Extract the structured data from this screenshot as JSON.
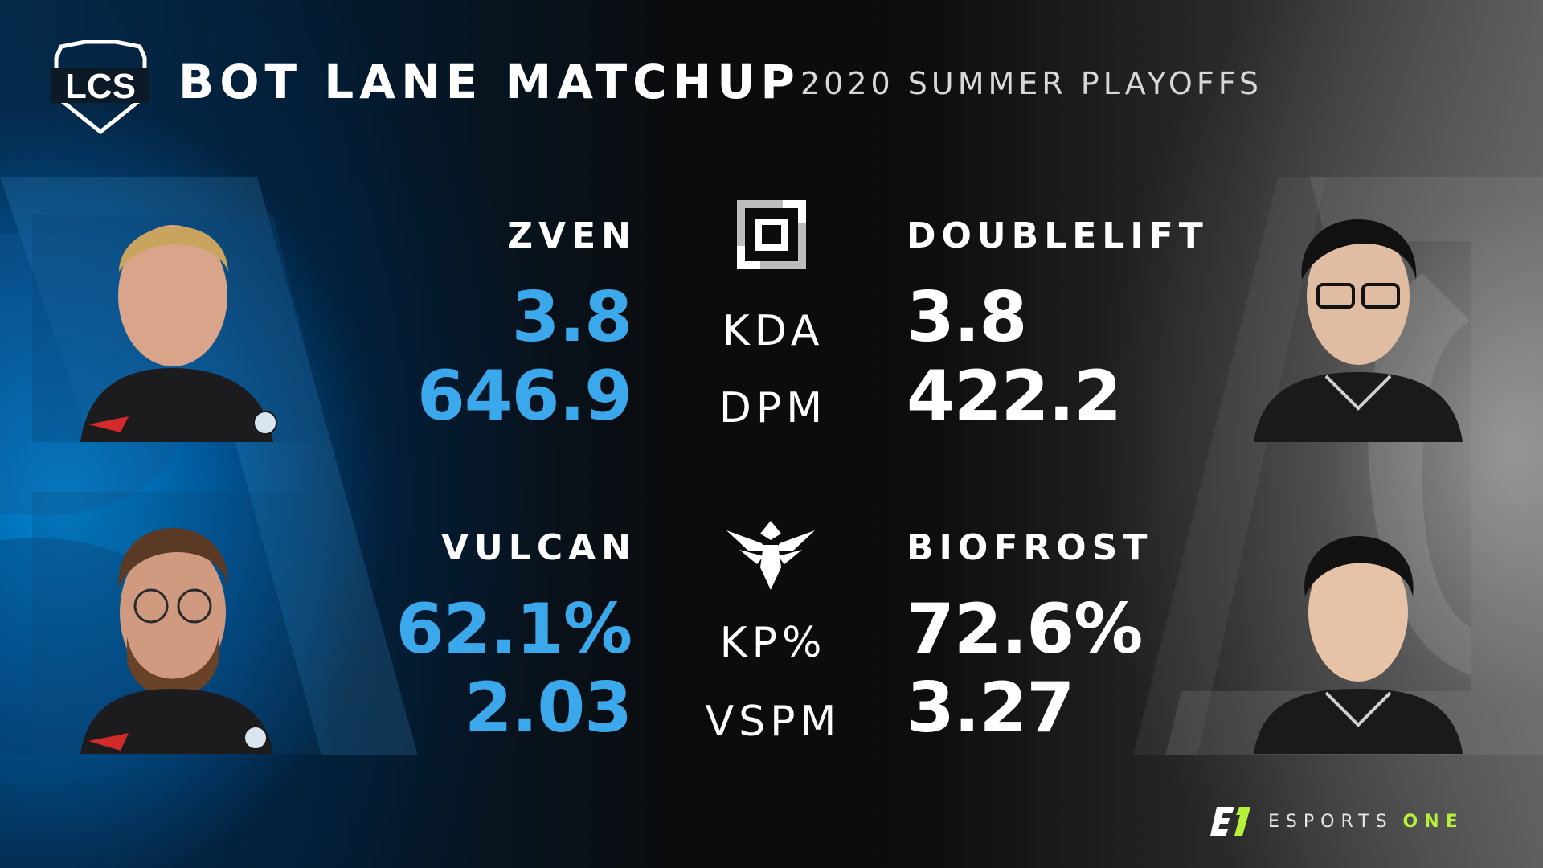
{
  "header": {
    "logo_text": "LCS",
    "title": "BOT LANE MATCHUP",
    "subtitle": "2020 SUMMER PLAYOFFS"
  },
  "colors": {
    "left_accent": "#3aa8ea",
    "right_value": "#ffffff",
    "brand_accent": "#b6f23a"
  },
  "matchups": [
    {
      "team_logo_icon": "dignitas-logo-icon",
      "left": {
        "name": "ZVEN",
        "stat1": "3.8",
        "stat2": "646.9"
      },
      "labels": [
        "KDA",
        "DPM"
      ],
      "right": {
        "name": "DOUBLELIFT",
        "stat1": "3.8",
        "stat2": "422.2"
      }
    },
    {
      "team_logo_icon": "immortals-logo-icon",
      "left": {
        "name": "VULCAN",
        "stat1": "62.1%",
        "stat2": "2.03"
      },
      "labels": [
        "KP%",
        "VSPM"
      ],
      "right": {
        "name": "BIOFROST",
        "stat1": "72.6%",
        "stat2": "3.27"
      }
    }
  ],
  "footer": {
    "brand_text": "ESPORTS",
    "brand_accent_text": "ONE"
  }
}
